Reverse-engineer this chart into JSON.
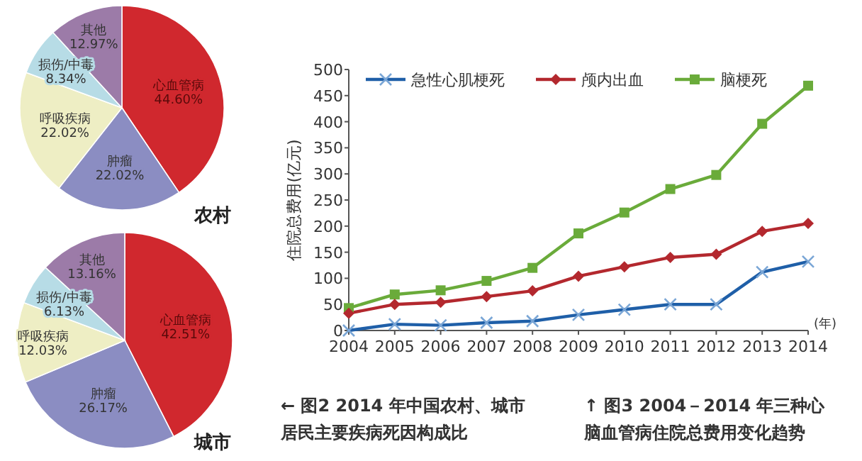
{
  "chart_data": [
    {
      "type": "pie",
      "title": "农村",
      "categories": [
        "心血管病",
        "肿瘤",
        "呼吸疾病",
        "损伤/中毒",
        "其他"
      ],
      "values": [
        44.6,
        22.02,
        22.02,
        8.34,
        12.97
      ],
      "colors": [
        "#d0282e",
        "#8b8dc2",
        "#eeeec4",
        "#b7dce6",
        "#9c7ba8"
      ],
      "value_labels": [
        "44.60%",
        "22.02%",
        "22.02%",
        "8.34%",
        "12.97%"
      ],
      "annotations": [
        "← 图2  2014 年中国农村、城市居民主要疾病死因构成比"
      ]
    },
    {
      "type": "pie",
      "title": "城市",
      "categories": [
        "心血管病",
        "肿瘤",
        "呼吸疾病",
        "损伤/中毒",
        "其他"
      ],
      "values": [
        42.51,
        26.17,
        12.03,
        6.13,
        13.16
      ],
      "colors": [
        "#d0282e",
        "#8b8dc2",
        "#eeeec4",
        "#b7dce6",
        "#9c7ba8"
      ],
      "value_labels": [
        "42.51%",
        "26.17%",
        "12.03%",
        "6.13%",
        "13.16%"
      ]
    },
    {
      "type": "line",
      "xlabel": "(年)",
      "ylabel": "住院总费用(亿元)",
      "x": [
        2004,
        2005,
        2006,
        2007,
        2008,
        2009,
        2010,
        2011,
        2012,
        2013,
        2014
      ],
      "xlim": [
        2004,
        2014
      ],
      "xticks": [
        2004,
        2005,
        2006,
        2007,
        2008,
        2009,
        2010,
        2011,
        2012,
        2013,
        2014
      ],
      "ylim": [
        0,
        500
      ],
      "yticks": [
        0,
        50,
        100,
        150,
        200,
        250,
        300,
        350,
        400,
        450,
        500
      ],
      "grid": false,
      "legend": "top",
      "annotations": [
        "↑ 图3  2004－2014 年三种心脑血管病住院总费用变化趋势"
      ],
      "series": [
        {
          "name": "急性心肌梗死",
          "color": "#1f5fa8",
          "marker": "cross",
          "values": [
            0,
            12,
            10,
            15,
            18,
            30,
            40,
            50,
            50,
            112,
            132
          ]
        },
        {
          "name": "颅内出血",
          "color": "#b3282e",
          "marker": "diamond",
          "values": [
            33,
            50,
            54,
            65,
            76,
            104,
            122,
            140,
            146,
            190,
            205
          ]
        },
        {
          "name": "脑梗死",
          "color": "#6aab3a",
          "marker": "square",
          "values": [
            43,
            69,
            77,
            95,
            120,
            186,
            226,
            271,
            298,
            396,
            469
          ]
        }
      ]
    }
  ]
}
